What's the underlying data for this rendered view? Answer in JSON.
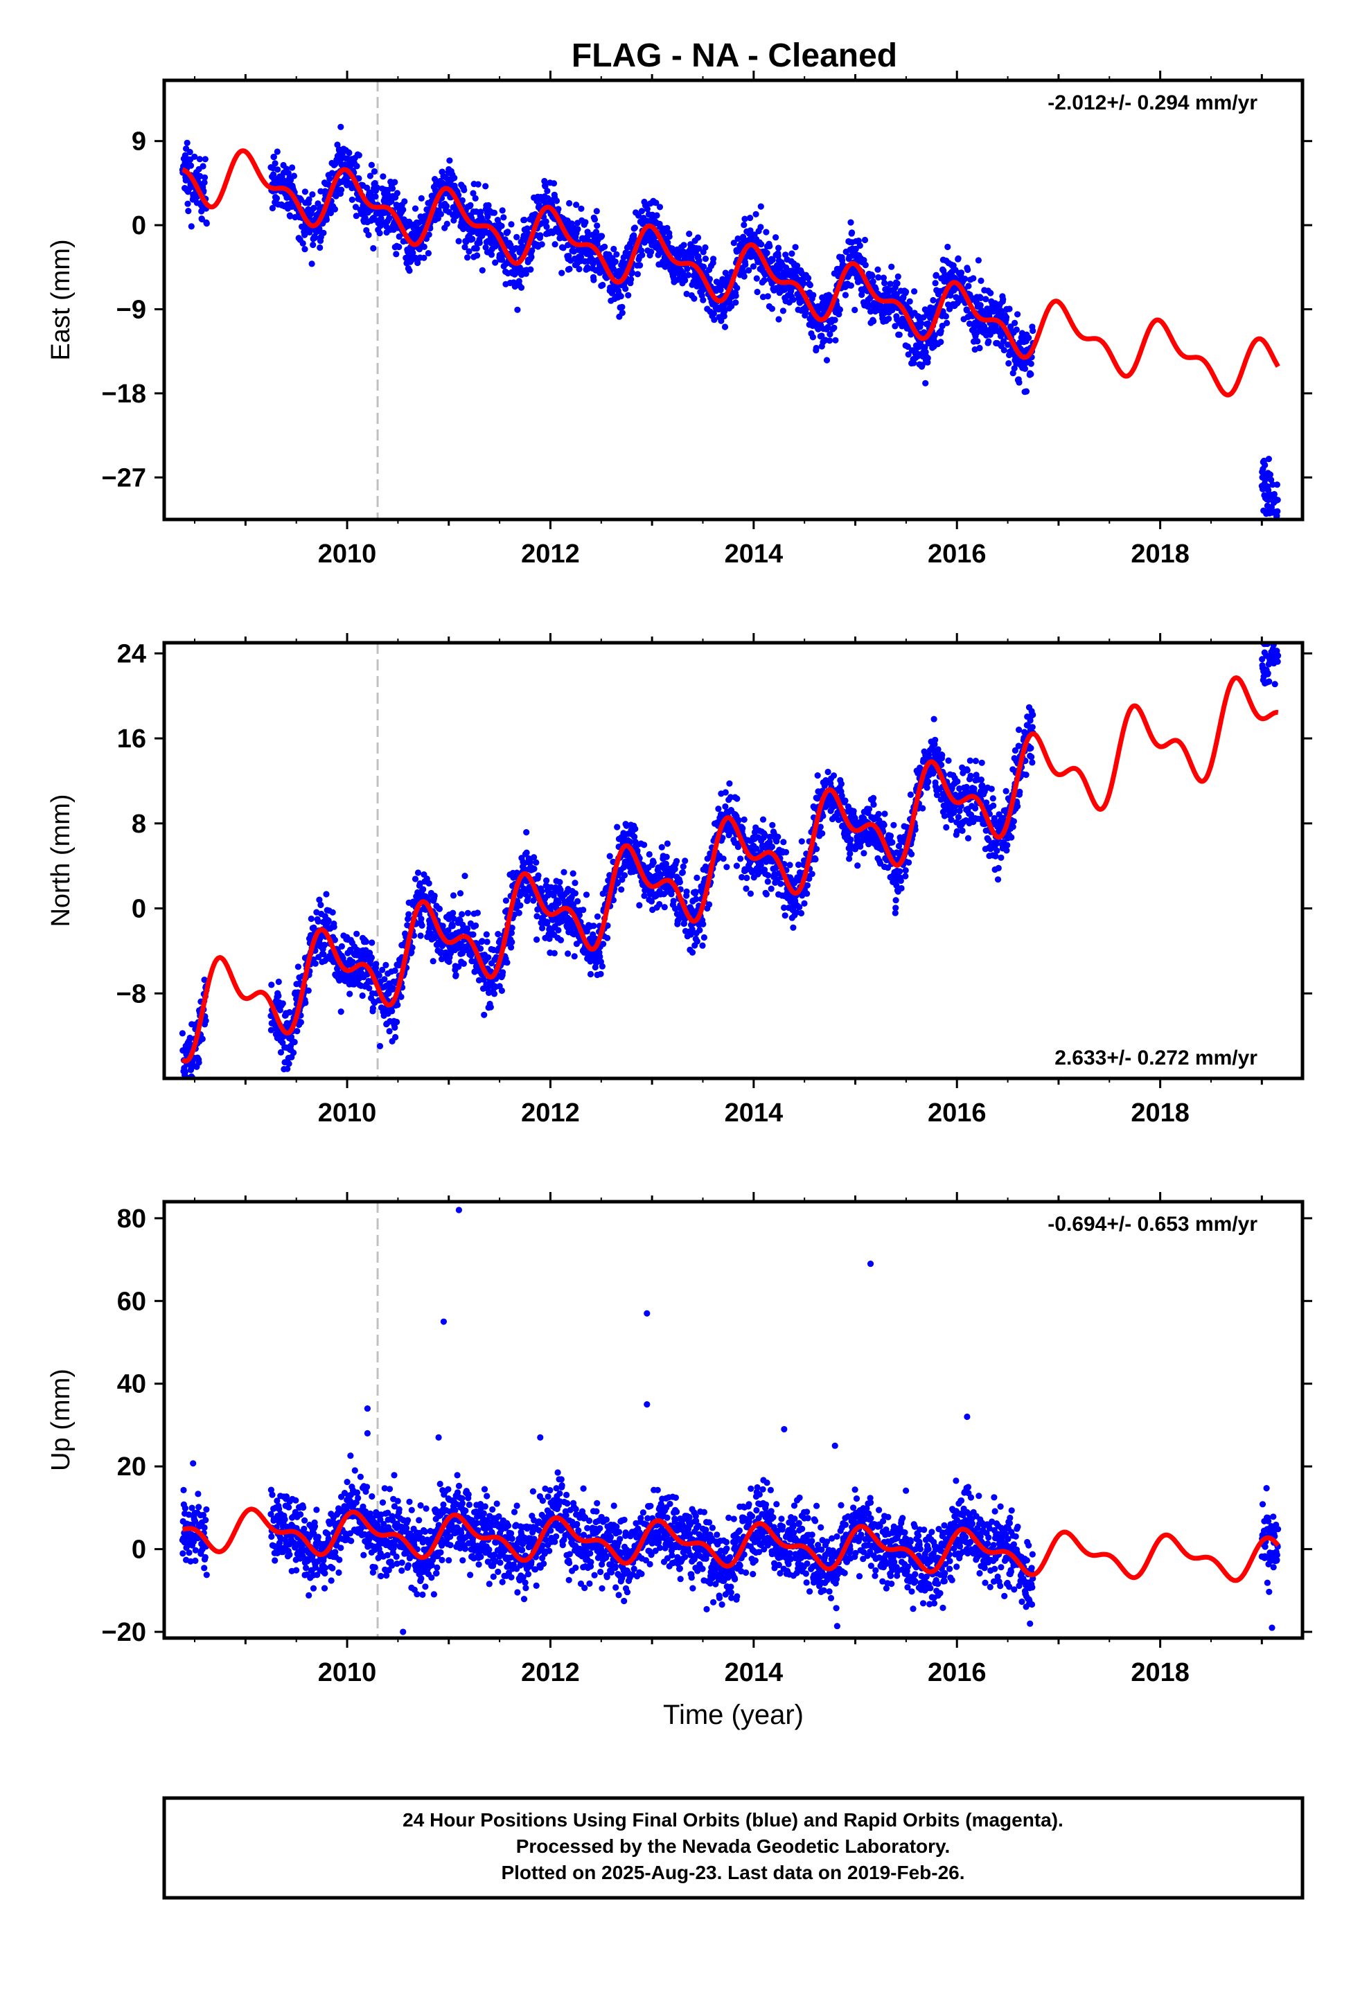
{
  "title": "FLAG  - NA - Cleaned",
  "footer": {
    "line1": "24 Hour Positions Using Final Orbits (blue) and Rapid Orbits (magenta).",
    "line2": "Processed by the Nevada Geodetic Laboratory.",
    "line3": "Plotted on 2025-Aug-23. Last data on 2019-Feb-26."
  },
  "colors": {
    "data": "#0000ff",
    "model": "#ff0000",
    "event_line": "#c0c0c0",
    "frame": "#000000"
  },
  "chart_data": [
    {
      "type": "scatter",
      "ylabel": "East (mm)",
      "xlim": [
        2008.2,
        2019.4
      ],
      "ylim": [
        -31.5,
        15.5
      ],
      "x_ticks": [
        2010,
        2012,
        2014,
        2016,
        2018
      ],
      "y_ticks": [
        9,
        0,
        -9,
        -18,
        -27
      ],
      "rate_label": "-2.012+/- 0.294 mm/yr",
      "rate_position": "top-right",
      "event_line_x": 2010.3,
      "grid": false,
      "model": {
        "offset": 6.2,
        "trend": -2.012,
        "season_amp": 2.4,
        "season_phase": 0.82
      },
      "data_segments": [
        {
          "start": 2008.38,
          "end": 2008.62,
          "shift": 0
        },
        {
          "start": 2009.25,
          "end": 2016.75,
          "shift": 0
        },
        {
          "start": 2019.0,
          "end": 2019.16,
          "shift": -15.5
        }
      ],
      "scatter_sd": 1.6
    },
    {
      "type": "scatter",
      "ylabel": "North (mm)",
      "xlim": [
        2008.2,
        2019.4
      ],
      "ylim": [
        -16,
        25
      ],
      "x_ticks": [
        2010,
        2012,
        2014,
        2016,
        2018
      ],
      "y_ticks": [
        24,
        16,
        8,
        0,
        -8
      ],
      "rate_label": "2.633+/- 0.272 mm/yr",
      "rate_position": "bottom-right",
      "event_line_x": 2010.3,
      "grid": false,
      "model": {
        "offset": -10.5,
        "trend": 2.633,
        "season_amp": 3.2,
        "season_phase": 0.58
      },
      "data_segments": [
        {
          "start": 2008.38,
          "end": 2008.62,
          "shift": 0
        },
        {
          "start": 2009.25,
          "end": 2016.75,
          "shift": 0
        },
        {
          "start": 2019.0,
          "end": 2019.16,
          "shift": 6
        }
      ],
      "scatter_sd": 1.5
    },
    {
      "type": "scatter",
      "ylabel": "Up (mm)",
      "xlim": [
        2008.2,
        2019.4
      ],
      "ylim": [
        -21.5,
        84
      ],
      "x_ticks": [
        2010,
        2012,
        2014,
        2016,
        2018
      ],
      "y_ticks": [
        80,
        60,
        40,
        20,
        0,
        -20
      ],
      "xlabel": "Time (year)",
      "rate_label": "-0.694+/- 0.653 mm/yr",
      "rate_position": "top-right",
      "event_line_x": 2010.3,
      "grid": false,
      "model": {
        "offset": 5.0,
        "trend": -0.694,
        "season_amp": 3.8,
        "season_phase": 0.9
      },
      "data_segments": [
        {
          "start": 2008.38,
          "end": 2008.62,
          "shift": 0
        },
        {
          "start": 2009.25,
          "end": 2016.75,
          "shift": 0
        },
        {
          "start": 2019.0,
          "end": 2019.16,
          "shift": 0
        }
      ],
      "scatter_sd": 4.5,
      "outliers": [
        {
          "x": 2011.1,
          "y": 82
        },
        {
          "x": 2010.95,
          "y": 55
        },
        {
          "x": 2012.95,
          "y": 57
        },
        {
          "x": 2015.15,
          "y": 69
        },
        {
          "x": 2012.95,
          "y": 35
        },
        {
          "x": 2010.2,
          "y": 34
        },
        {
          "x": 2016.1,
          "y": 32
        },
        {
          "x": 2014.3,
          "y": 29
        },
        {
          "x": 2011.9,
          "y": 27
        },
        {
          "x": 2010.9,
          "y": 27
        },
        {
          "x": 2014.8,
          "y": 25
        },
        {
          "x": 2010.2,
          "y": 28
        },
        {
          "x": 2019.1,
          "y": -19
        },
        {
          "x": 2010.55,
          "y": -20
        }
      ]
    }
  ]
}
